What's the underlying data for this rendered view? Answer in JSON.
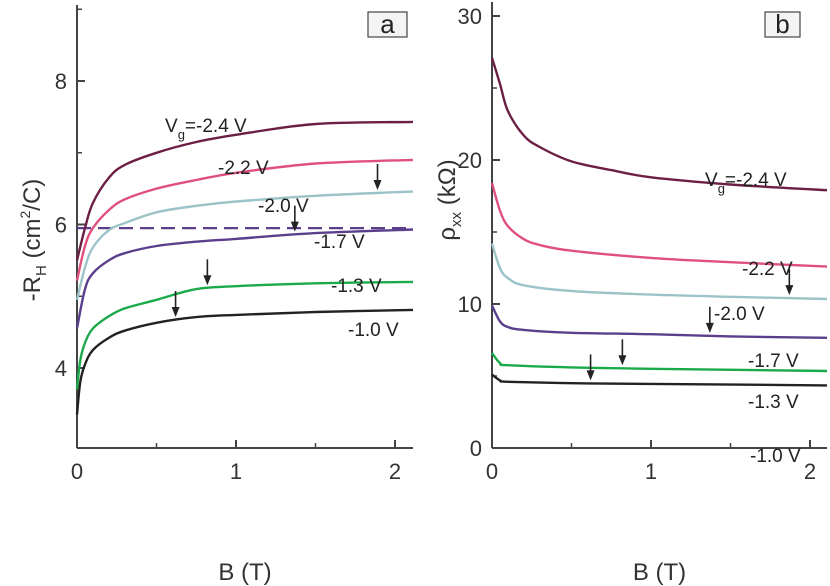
{
  "chart_data": [
    {
      "panel": "a",
      "type": "line",
      "xlabel": "B (T)",
      "ylabel": {
        "main": "-R",
        "sub": "H",
        "unit_pre": " (cm",
        "sup": "2",
        "unit_post": "/C)"
      },
      "xlim": [
        0,
        2.1
      ],
      "ylim": [
        2.9,
        9.05
      ],
      "xticks": [
        {
          "v": 0,
          "label": "0"
        },
        {
          "v": 1,
          "label": "1"
        },
        {
          "v": 2,
          "label": "2"
        }
      ],
      "xminor": [
        0.5,
        1.5
      ],
      "yticks": [
        {
          "v": 4,
          "label": "4"
        },
        {
          "v": 6,
          "label": "6"
        },
        {
          "v": 8,
          "label": "8"
        }
      ],
      "yminor": [
        5,
        7,
        9
      ],
      "reference_line": {
        "y": 5.95,
        "style": "dashed",
        "color": "#5b3f8c"
      },
      "series": [
        {
          "name": "Vg=-2.4 V",
          "color": "#6b1f45",
          "x": [
            0,
            0.05,
            0.1,
            0.2,
            0.3,
            0.5,
            0.75,
            1.0,
            1.5,
            2.1
          ],
          "y": [
            5.5,
            5.95,
            6.3,
            6.65,
            6.83,
            7.0,
            7.15,
            7.25,
            7.4,
            7.43
          ]
        },
        {
          "name": "-2.2 V",
          "color": "#e0507f",
          "x": [
            0,
            0.05,
            0.1,
            0.2,
            0.3,
            0.5,
            0.75,
            1.0,
            1.5,
            2.1
          ],
          "y": [
            5.22,
            5.7,
            5.95,
            6.2,
            6.35,
            6.5,
            6.62,
            6.72,
            6.85,
            6.9
          ]
        },
        {
          "name": "-2.0 V",
          "color": "#9cc4c8",
          "x": [
            0,
            0.05,
            0.1,
            0.2,
            0.3,
            0.5,
            0.75,
            1.0,
            1.5,
            2.1
          ],
          "y": [
            4.95,
            5.4,
            5.68,
            5.92,
            6.02,
            6.17,
            6.26,
            6.32,
            6.4,
            6.46
          ]
        },
        {
          "name": "-1.7 V",
          "color": "#5b3f8c",
          "x": [
            0,
            0.05,
            0.1,
            0.2,
            0.3,
            0.5,
            0.75,
            1.0,
            1.5,
            2.1
          ],
          "y": [
            4.55,
            5.1,
            5.32,
            5.5,
            5.6,
            5.7,
            5.76,
            5.8,
            5.88,
            5.93
          ]
        },
        {
          "name": "-1.3 V",
          "color": "#1aaa4a",
          "x": [
            0,
            0.02,
            0.05,
            0.1,
            0.2,
            0.3,
            0.5,
            0.75,
            1.0,
            1.5,
            2.1
          ],
          "y": [
            3.7,
            4.1,
            4.35,
            4.55,
            4.72,
            4.83,
            4.95,
            5.1,
            5.14,
            5.18,
            5.2
          ]
        },
        {
          "name": "-1.0 V",
          "color": "#222222",
          "x": [
            0,
            0.02,
            0.05,
            0.1,
            0.2,
            0.3,
            0.5,
            0.75,
            1.0,
            1.5,
            2.1
          ],
          "y": [
            3.35,
            3.8,
            4.05,
            4.25,
            4.42,
            4.52,
            4.63,
            4.71,
            4.74,
            4.78,
            4.81
          ]
        }
      ],
      "arrows": [
        {
          "series": "-2.0 V",
          "x": 1.89
        },
        {
          "series": "-1.7 V",
          "x": 1.37
        },
        {
          "series": "-1.3 V",
          "x": 0.82
        },
        {
          "series": "-1.0 V",
          "x": 0.62
        }
      ]
    },
    {
      "panel": "b",
      "type": "line",
      "xlabel": "B (T)",
      "ylabel": {
        "main": "ρ",
        "sub": "xx",
        "unit_pre": " (kΩ)",
        "sup": "",
        "unit_post": ""
      },
      "xlim": [
        0,
        2.1
      ],
      "ylim": [
        0,
        31
      ],
      "xticks": [
        {
          "v": 0,
          "label": "0"
        },
        {
          "v": 1,
          "label": "1"
        },
        {
          "v": 2,
          "label": "2"
        }
      ],
      "xminor": [
        0.5,
        1.5
      ],
      "yticks": [
        {
          "v": 0,
          "label": "0"
        },
        {
          "v": 10,
          "label": "10"
        },
        {
          "v": 20,
          "label": "20"
        },
        {
          "v": 30,
          "label": "30"
        }
      ],
      "yminor": [
        5,
        15,
        25
      ],
      "series": [
        {
          "name": "Vg=-2.4 V",
          "color": "#6b1f45",
          "x": [
            0,
            0.05,
            0.1,
            0.2,
            0.3,
            0.5,
            0.75,
            1.0,
            1.5,
            2.1
          ],
          "y": [
            27.1,
            25.3,
            23.4,
            21.7,
            20.9,
            19.9,
            19.3,
            18.8,
            18.3,
            17.9
          ]
        },
        {
          "name": "-2.2 V",
          "color": "#e0507f",
          "x": [
            0,
            0.05,
            0.1,
            0.2,
            0.3,
            0.5,
            1.0,
            1.5,
            2.1
          ],
          "y": [
            18.4,
            16.5,
            15.4,
            14.5,
            14.1,
            13.7,
            13.2,
            12.9,
            12.6
          ]
        },
        {
          "name": "-2.0 V",
          "color": "#9cc4c8",
          "x": [
            0,
            0.05,
            0.1,
            0.2,
            0.5,
            1.0,
            1.5,
            2.1
          ],
          "y": [
            14.2,
            12.5,
            11.8,
            11.3,
            10.9,
            10.65,
            10.5,
            10.35
          ]
        },
        {
          "name": "-1.7 V",
          "color": "#5b3f8c",
          "x": [
            0,
            0.05,
            0.1,
            0.2,
            0.5,
            1.0,
            1.5,
            2.1
          ],
          "y": [
            9.9,
            8.8,
            8.4,
            8.2,
            8.0,
            7.9,
            7.75,
            7.65
          ]
        },
        {
          "name": "-1.3 V",
          "color": "#1aaa4a",
          "x": [
            0,
            0.05,
            0.1,
            0.5,
            1.0,
            2.1
          ],
          "y": [
            6.6,
            5.9,
            5.75,
            5.6,
            5.5,
            5.35
          ]
        },
        {
          "name": "-1.0 V",
          "color": "#222222",
          "x": [
            0,
            0.05,
            0.1,
            0.5,
            1.0,
            2.1
          ],
          "y": [
            5.1,
            4.7,
            4.6,
            4.5,
            4.45,
            4.35
          ]
        }
      ],
      "arrows": [
        {
          "series": "-2.0 V",
          "x": 1.87
        },
        {
          "series": "-1.7 V",
          "x": 1.37
        },
        {
          "series": "-1.3 V",
          "x": 0.82
        },
        {
          "series": "-1.0 V",
          "x": 0.62
        }
      ]
    }
  ]
}
